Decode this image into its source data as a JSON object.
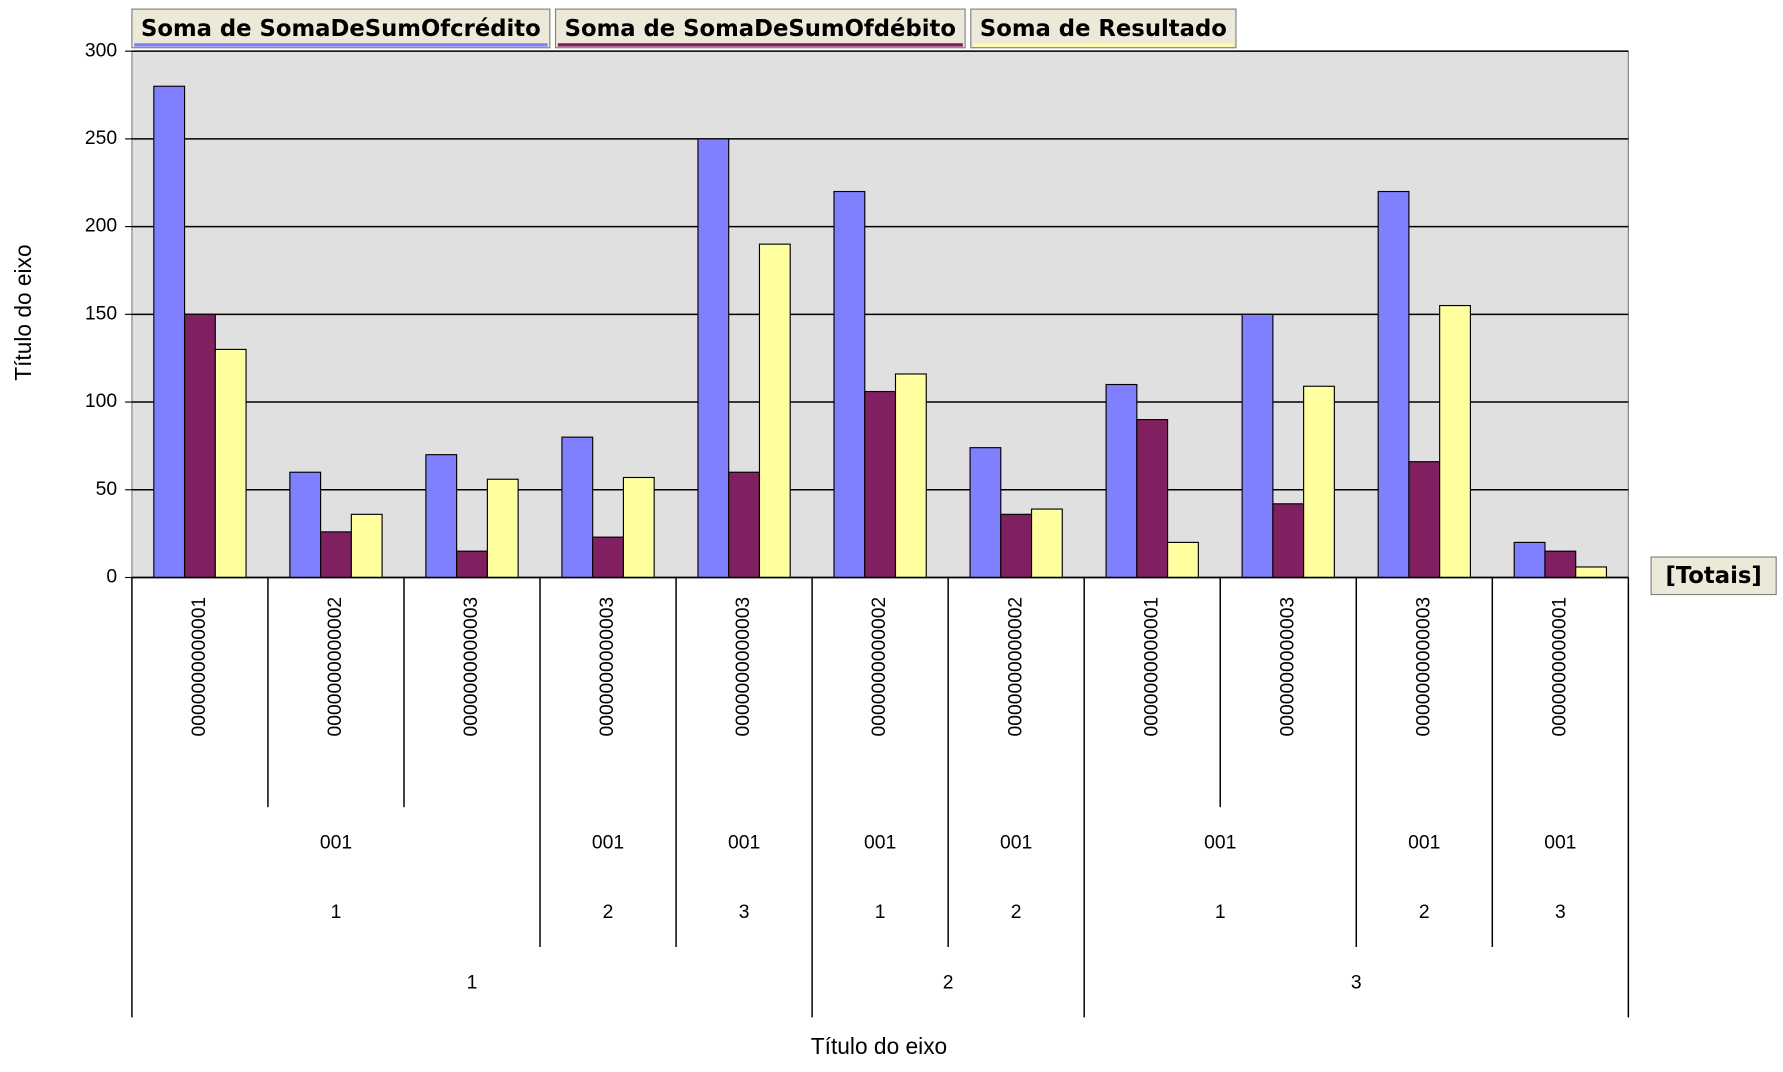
{
  "chart_data": {
    "type": "bar",
    "x_label": "Título do eixo",
    "y_label": "Título do eixo",
    "totals_label": "[Totais]",
    "categories": [
      [
        "0000000000001",
        "001",
        "1",
        "1"
      ],
      [
        "0000000000002",
        "001",
        "1",
        "1"
      ],
      [
        "0000000000003",
        "001",
        "1",
        "1"
      ],
      [
        "0000000000003",
        "001",
        "2",
        "1"
      ],
      [
        "0000000000003",
        "001",
        "3",
        "1"
      ],
      [
        "0000000000002",
        "001",
        "1",
        "2"
      ],
      [
        "0000000000002",
        "001",
        "2",
        "2"
      ],
      [
        "0000000000001",
        "001",
        "1",
        "3"
      ],
      [
        "0000000000003",
        "001",
        "1",
        "3"
      ],
      [
        "0000000000003",
        "001",
        "2",
        "3"
      ],
      [
        "0000000000001",
        "001",
        "3",
        "3"
      ]
    ],
    "series": [
      {
        "name": "Soma de SomaDeSumOfcrédito",
        "color": "#8080ff",
        "values": [
          280,
          60,
          70,
          80,
          250,
          220,
          74,
          110,
          150,
          220,
          20
        ]
      },
      {
        "name": "Soma de SomaDeSumOfdébito",
        "color": "#802060",
        "values": [
          150,
          26,
          15,
          23,
          60,
          106,
          36,
          90,
          42,
          66,
          15
        ]
      },
      {
        "name": "Soma de Resultado",
        "color": "#ffffa0",
        "values": [
          130,
          36,
          56,
          57,
          190,
          116,
          39,
          20,
          109,
          155,
          6
        ]
      }
    ],
    "ylim": [
      0,
      300
    ],
    "yticks": [
      0,
      50,
      100,
      150,
      200,
      250,
      300
    ],
    "grid": true
  }
}
